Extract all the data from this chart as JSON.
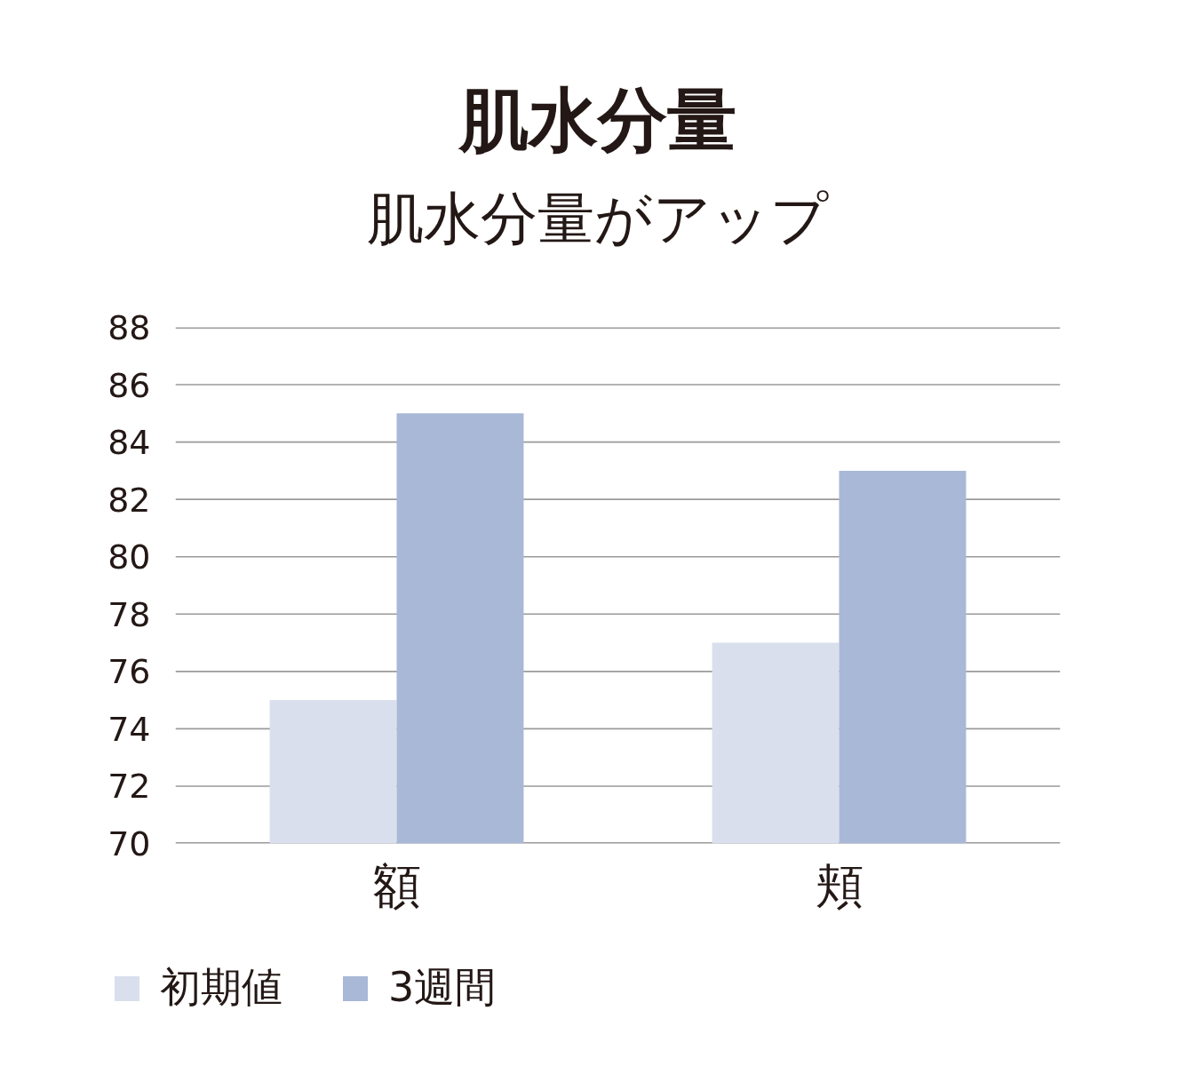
{
  "chart_data": {
    "type": "bar",
    "title": "肌水分量",
    "subtitle": "肌水分量がアップ",
    "categories": [
      "額",
      "頬"
    ],
    "series": [
      {
        "name": "初期値",
        "color": "#dadfed",
        "values": [
          75,
          77
        ]
      },
      {
        "name": "3週間",
        "color": "#a9b8d6",
        "values": [
          85,
          83
        ]
      }
    ],
    "ylim": [
      70,
      88
    ],
    "yticks": [
      70,
      72,
      74,
      76,
      78,
      80,
      82,
      84,
      86,
      88
    ],
    "grid": "y",
    "legend": "bottom left"
  }
}
